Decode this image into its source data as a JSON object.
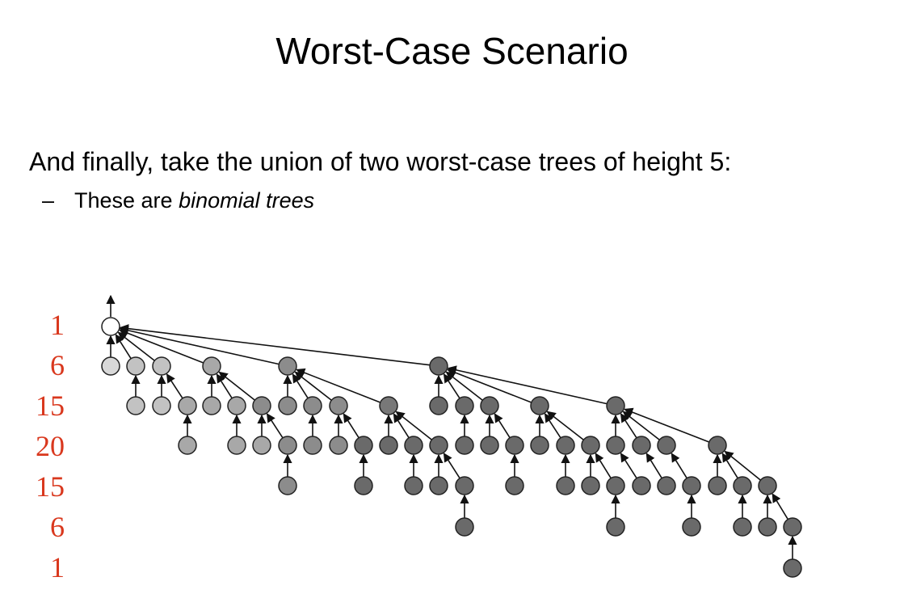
{
  "title": "Worst-Case Scenario",
  "bullet": "And finally, take the union of two worst-case trees of height 5:",
  "sub_dash": "–",
  "sub_prefix": "These are ",
  "sub_emph": "binomial trees",
  "level_counts": [
    "1",
    "6",
    "15",
    "20",
    "15",
    "6",
    "1"
  ],
  "colors": {
    "count_text": "#d9381e",
    "root_fill": "#ffffff",
    "node_stroke": "#222222"
  },
  "tree": {
    "root": {
      "fill": "#ffffff"
    },
    "edges": [
      [
        "r",
        "a1"
      ],
      [
        "r",
        "a2"
      ],
      [
        "r",
        "a3"
      ],
      [
        "r",
        "a4"
      ],
      [
        "r",
        "a5"
      ],
      [
        "r",
        "a6"
      ],
      [
        "a3",
        "b1"
      ],
      [
        "a4",
        "b2"
      ],
      [
        "a4",
        "b3"
      ],
      [
        "a5",
        "b4"
      ],
      [
        "a5",
        "b5"
      ],
      [
        "a5",
        "b6"
      ],
      [
        "a5",
        "b7"
      ],
      [
        "b5",
        "c1"
      ],
      [
        "b6",
        "c2"
      ],
      [
        "b6",
        "c3"
      ],
      [
        "a6",
        "b8"
      ],
      [
        "a6",
        "b9"
      ],
      [
        "a6",
        "b10"
      ],
      [
        "a6",
        "b11"
      ],
      [
        "a6",
        "b12"
      ]
    ]
  }
}
